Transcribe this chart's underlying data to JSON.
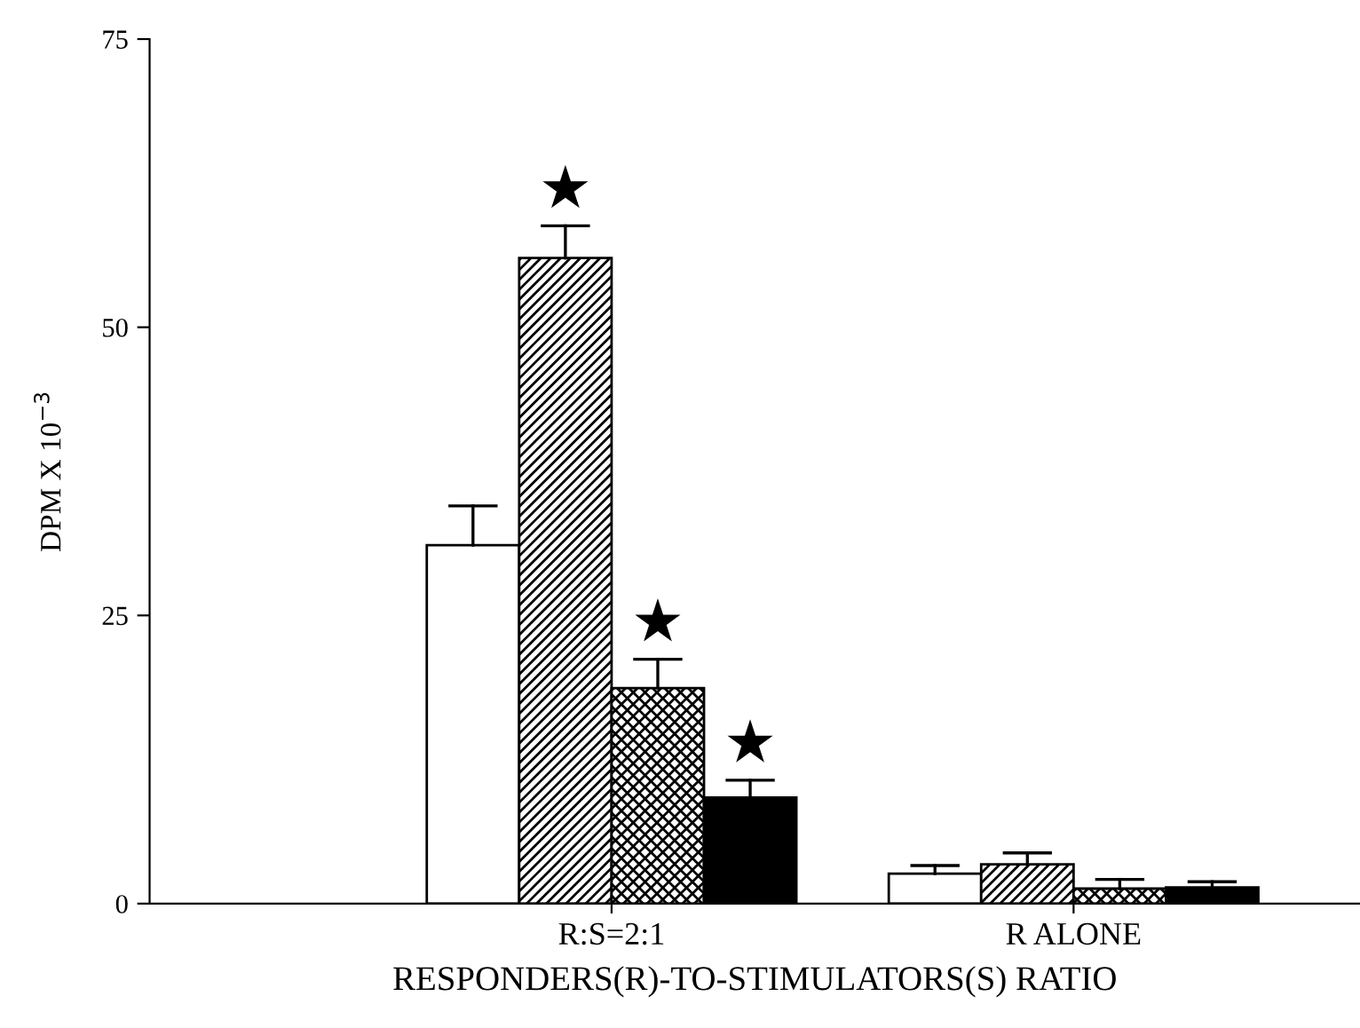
{
  "chart_data": {
    "type": "bar",
    "xlabel": "RESPONDERS(R)-TO-STIMULATORS(S) RATIO",
    "ylabel": "DPM X 10$^{−3}$",
    "categories": [
      "R:S=2:1",
      "R ALONE"
    ],
    "series": [
      {
        "color": "#ffffff",
        "values": [
          31.1,
          2.6
        ],
        "errors": [
          [
            31.1,
            34.5
          ],
          [
            2.6,
            3.3
          ]
        ]
      },
      {
        "color": "#000000",
        "values": [
          56.0,
          3.4
        ],
        "errors": [
          [
            56.0,
            58.8
          ],
          [
            3.4,
            4.4
          ]
        ]
      },
      {
        "color": "#000000",
        "values": [
          18.7,
          1.3
        ],
        "errors": [
          [
            18.7,
            21.2
          ],
          [
            1.3,
            2.1
          ]
        ]
      },
      {
        "color": "#000000",
        "values": [
          9.2,
          1.4
        ],
        "errors": [
          [
            9.2,
            10.7
          ],
          [
            1.4,
            1.9
          ]
        ]
      }
    ],
    "annotations": [
      {
        "text": "★",
        "x": "R:S=2:1",
        "y": 56.0
      },
      {
        "text": "★",
        "x": "R:S=2:1",
        "y": 18.7
      },
      {
        "text": "★",
        "x": "R:S=2:1",
        "y": 9.2
      }
    ],
    "ylim": [
      0,
      75
    ],
    "yticks": [
      0,
      25,
      50,
      75
    ],
    "grid": false,
    "legend": false
  }
}
